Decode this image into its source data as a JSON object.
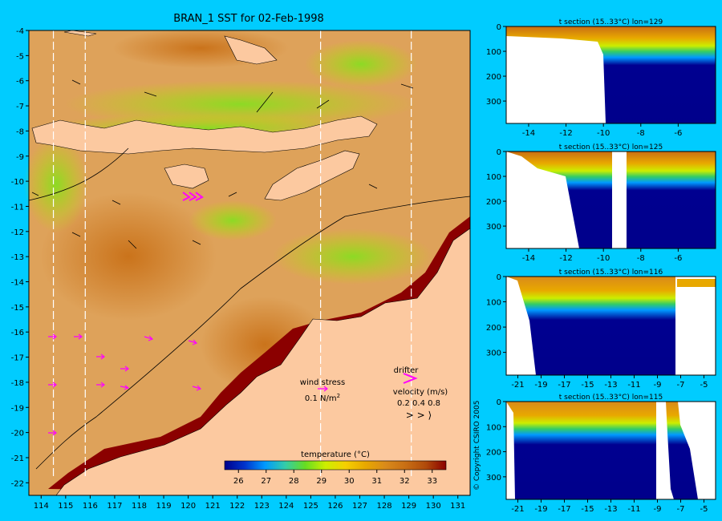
{
  "main_title": "BRAN_1 SST for 02-Feb-1998",
  "copyright": "© Copyright CSIRO 2005",
  "map": {
    "x_ticks": [
      114,
      115,
      116,
      117,
      118,
      119,
      120,
      121,
      122,
      123,
      124,
      125,
      126,
      127,
      128,
      129,
      130,
      131
    ],
    "y_ticks": [
      -4,
      -5,
      -6,
      -7,
      -8,
      -9,
      -10,
      -11,
      -12,
      -13,
      -14,
      -15,
      -16,
      -17,
      -18,
      -19,
      -20,
      -21,
      -22
    ],
    "section_lons": [
      114.5,
      115.8,
      125.4,
      129.1
    ],
    "wind_label": "wind stress",
    "wind_value_html": "0.1 N/m",
    "wind_exp": "2",
    "drifter_label": "drifter",
    "velocity_label": "velocity (m/s)",
    "velocity_values": "0.2 0.4 0.8",
    "velocity_arrows": "> > ⟩"
  },
  "colorbar": {
    "label": "temperature (°C)",
    "ticks": [
      26,
      27,
      28,
      29,
      30,
      31,
      32,
      33
    ],
    "colors": [
      "#00008b",
      "#0033cc",
      "#0099ff",
      "#33ccaa",
      "#66dd22",
      "#ccee00",
      "#f5d000",
      "#e8a800",
      "#d98a1a",
      "#c86e14",
      "#b04a0a",
      "#8b0000"
    ]
  },
  "chart_data": [
    {
      "type": "heatmap",
      "title": "BRAN_1 SST for 02-Feb-1998",
      "xlim": [
        113.5,
        131.5
      ],
      "ylim": [
        -22.5,
        -4
      ],
      "colorbar_label": "temperature (°C)",
      "colorbar_range": [
        25.5,
        33.5
      ]
    },
    {
      "type": "heatmap",
      "title": "t section (15..33°C) lon=129",
      "x_ticks": [
        -14,
        -12,
        -10,
        -8,
        -6
      ],
      "y_ticks": [
        0,
        100,
        200,
        300
      ],
      "xlim": [
        -15.2,
        -4
      ],
      "ylim": [
        0,
        390
      ]
    },
    {
      "type": "heatmap",
      "title": "t section (15..33°C) lon=125",
      "x_ticks": [
        -14,
        -12,
        -10,
        -8,
        -6
      ],
      "y_ticks": [
        0,
        100,
        200,
        300
      ],
      "xlim": [
        -15.2,
        -4
      ],
      "ylim": [
        0,
        390
      ]
    },
    {
      "type": "heatmap",
      "title": "t section (15..33°C) lon=116",
      "x_ticks": [
        -21,
        -19,
        -17,
        -15,
        -13,
        -11,
        -9,
        -7,
        -5
      ],
      "y_ticks": [
        0,
        100,
        200,
        300
      ],
      "xlim": [
        -22,
        -4
      ],
      "ylim": [
        0,
        390
      ]
    },
    {
      "type": "heatmap",
      "title": "t section (15..33°C) lon=115",
      "x_ticks": [
        -21,
        -19,
        -17,
        -15,
        -13,
        -11,
        -9,
        -7,
        -5
      ],
      "y_ticks": [
        0,
        100,
        200,
        300
      ],
      "xlim": [
        -22,
        -4
      ],
      "ylim": [
        0,
        390
      ]
    }
  ]
}
